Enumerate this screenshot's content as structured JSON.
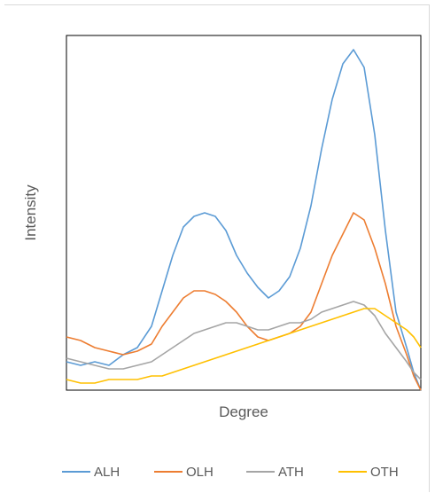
{
  "chart_data": {
    "type": "line",
    "title": "",
    "xlabel": "Degree",
    "ylabel": "Intensity",
    "x_ticks_shown": false,
    "y_ticks_shown": false,
    "grid": false,
    "legend_position": "bottom",
    "xlim": [
      0,
      100
    ],
    "ylim": [
      0,
      100
    ],
    "series": [
      {
        "name": "ALH",
        "color": "#5b9bd5",
        "x": [
          0,
          4,
          8,
          12,
          16,
          20,
          24,
          27,
          30,
          33,
          36,
          39,
          42,
          45,
          48,
          51,
          54,
          57,
          60,
          63,
          66,
          69,
          72,
          75,
          78,
          81,
          84,
          87,
          90,
          93,
          96,
          98,
          100
        ],
        "y": [
          8,
          7,
          8,
          7,
          10,
          12,
          18,
          28,
          38,
          46,
          49,
          50,
          49,
          45,
          38,
          33,
          29,
          26,
          28,
          32,
          40,
          52,
          68,
          82,
          92,
          96,
          91,
          72,
          45,
          22,
          12,
          5,
          0
        ]
      },
      {
        "name": "OLH",
        "color": "#ed7d31",
        "x": [
          0,
          4,
          8,
          12,
          16,
          20,
          24,
          27,
          30,
          33,
          36,
          39,
          42,
          45,
          48,
          51,
          54,
          57,
          60,
          63,
          66,
          69,
          72,
          75,
          78,
          81,
          84,
          87,
          90,
          93,
          96,
          98,
          100
        ],
        "y": [
          15,
          14,
          12,
          11,
          10,
          11,
          13,
          18,
          22,
          26,
          28,
          28,
          27,
          25,
          22,
          18,
          15,
          14,
          15,
          16,
          18,
          22,
          30,
          38,
          44,
          50,
          48,
          40,
          30,
          18,
          10,
          4,
          0
        ]
      },
      {
        "name": "ATH",
        "color": "#a5a5a5",
        "x": [
          0,
          4,
          8,
          12,
          16,
          20,
          24,
          27,
          30,
          33,
          36,
          39,
          42,
          45,
          48,
          51,
          54,
          57,
          60,
          63,
          66,
          69,
          72,
          75,
          78,
          81,
          84,
          87,
          90,
          93,
          96,
          98,
          100
        ],
        "y": [
          9,
          8,
          7,
          6,
          6,
          7,
          8,
          10,
          12,
          14,
          16,
          17,
          18,
          19,
          19,
          18,
          17,
          17,
          18,
          19,
          19,
          20,
          22,
          23,
          24,
          25,
          24,
          21,
          16,
          12,
          8,
          5,
          3
        ]
      },
      {
        "name": "OTH",
        "color": "#ffc000",
        "x": [
          0,
          4,
          8,
          12,
          16,
          20,
          24,
          27,
          30,
          33,
          36,
          39,
          42,
          45,
          48,
          51,
          54,
          57,
          60,
          63,
          66,
          69,
          72,
          75,
          78,
          81,
          84,
          87,
          90,
          93,
          96,
          98,
          100
        ],
        "y": [
          3,
          2,
          2,
          3,
          3,
          3,
          4,
          4,
          5,
          6,
          7,
          8,
          9,
          10,
          11,
          12,
          13,
          14,
          15,
          16,
          17,
          18,
          19,
          20,
          21,
          22,
          23,
          23,
          21,
          19,
          17,
          15,
          12
        ]
      }
    ]
  }
}
